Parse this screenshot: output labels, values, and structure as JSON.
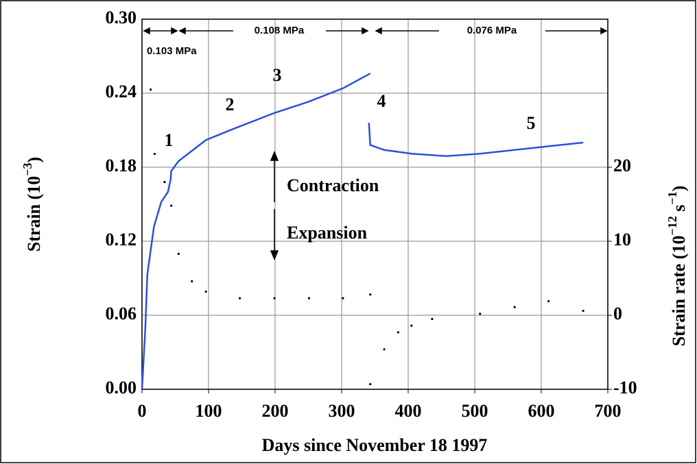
{
  "chart_data": {
    "type": "line",
    "x_label": "Days since November 18 1997",
    "y_label": [
      "Strain (10",
      "−3",
      ")"
    ],
    "y2_label": [
      "Strain rate (10",
      "−12",
      " s",
      "−1",
      ")"
    ],
    "annotations": [
      "0.103 MPa",
      "0.108 MPa",
      "0.076 MPa",
      "1",
      "2",
      "3",
      "4",
      "5",
      "Contraction",
      "Expansion"
    ],
    "xlim": [
      0,
      700
    ],
    "xticks": [
      0,
      100,
      200,
      300,
      400,
      500,
      600,
      700
    ],
    "ylim": [
      0,
      0.3
    ],
    "yticks": [
      {
        "value": 0,
        "label": "0.00"
      },
      0.06,
      0.12,
      0.18,
      0.24,
      {
        "value": 0.3,
        "label": "0.30"
      }
    ],
    "y2lim": [
      -10,
      40
    ],
    "y2ticks": [
      -10,
      0,
      10,
      20
    ],
    "grid": true,
    "series": [
      {
        "color": "#2b4fe0",
        "marker": "line",
        "x": [
          0,
          3,
          5,
          8,
          18,
          29,
          39,
          43,
          44,
          55,
          96,
          137,
          199,
          250,
          302,
          343,
          343,
          341,
          343,
          364,
          405,
          457,
          508,
          560,
          611,
          663
        ],
        "values": [
          0,
          0.03,
          0.05,
          0.093,
          0.132,
          0.152,
          0.16,
          0.17,
          0.177,
          0.185,
          0.202,
          0.211,
          0.224,
          0.233,
          0.244,
          0.256,
          null,
          0.216,
          0.198,
          0.194,
          0.191,
          0.189,
          0.191,
          0.194,
          0.197,
          0.2
        ]
      },
      {
        "color": "#000000",
        "marker": "dot",
        "axis": "y2",
        "x": [
          13,
          19,
          34,
          44,
          55,
          75,
          96,
          147,
          199,
          251,
          302,
          343,
          343,
          364,
          385,
          405,
          436,
          508,
          560,
          611,
          663
        ],
        "values": [
          30.5,
          21.8,
          18,
          14.8,
          8.3,
          4.6,
          3.2,
          2.3,
          2.3,
          2.3,
          2.3,
          2.8,
          -9.3,
          -4.6,
          -2.3,
          -1.4,
          -0.5,
          0.2,
          1.1,
          1.9,
          0.6
        ]
      }
    ]
  }
}
